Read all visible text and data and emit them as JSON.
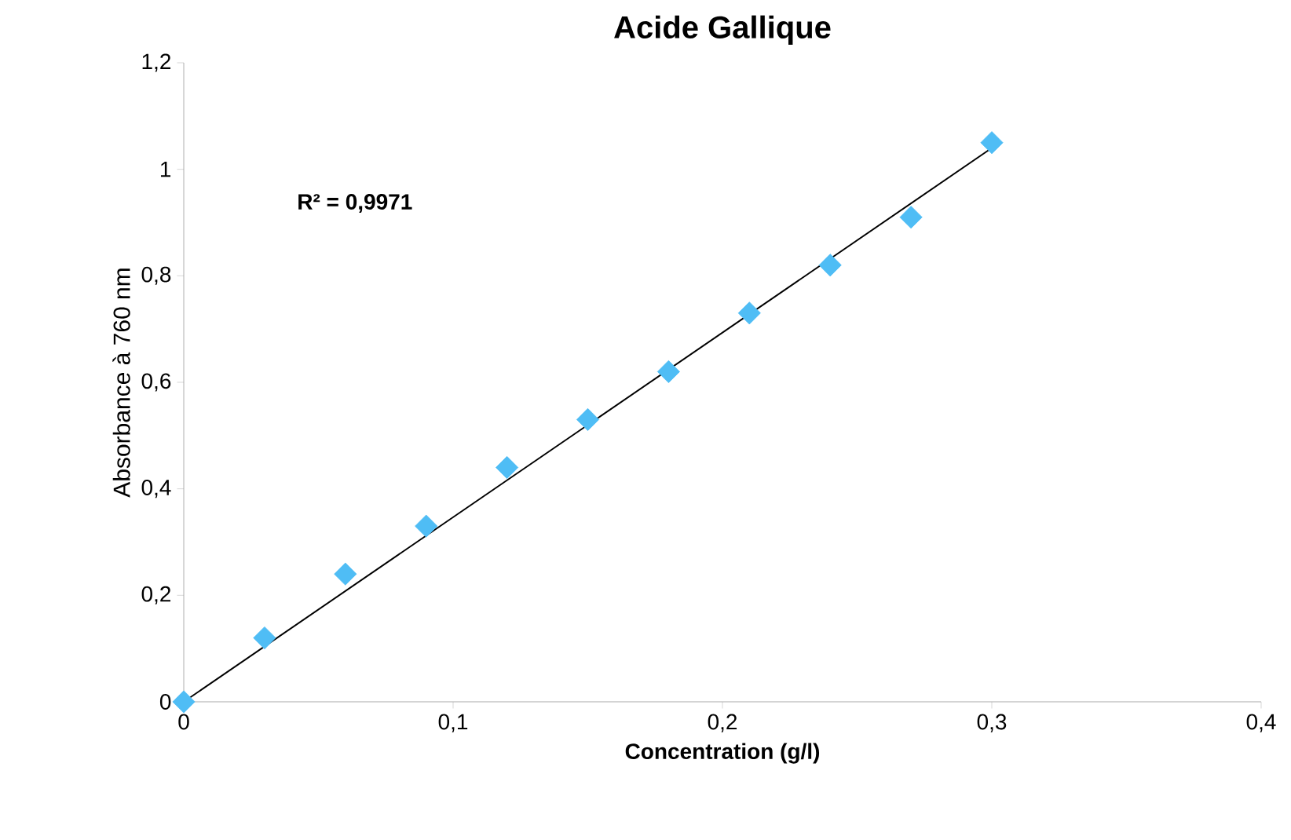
{
  "chart_data": {
    "type": "scatter",
    "title": "Acide Gallique",
    "xlabel": "Concentration (g/l)",
    "ylabel": "Absorbance à 760 nm",
    "annotations": [
      "R² = 0,9971"
    ],
    "series": [
      {
        "color": "#4fbdf5",
        "marker": "diamond",
        "x": [
          0,
          0.03,
          0.06,
          0.09,
          0.12,
          0.15,
          0.18,
          0.21,
          0.24,
          0.27,
          0.3
        ],
        "values": [
          0,
          0.12,
          0.24,
          0.33,
          0.44,
          0.53,
          0.62,
          0.73,
          0.82,
          0.91,
          1.05
        ]
      },
      {
        "type": "line",
        "color": "#000000",
        "x": [
          0,
          0.3
        ],
        "values": [
          0,
          1.04
        ]
      }
    ],
    "xlim": [
      0,
      0.4
    ],
    "ylim": [
      0,
      1.2
    ],
    "xticks": [
      0,
      {
        "value": 0.1,
        "label": "0,1"
      },
      {
        "value": 0.2,
        "label": "0,2"
      },
      {
        "value": 0.3,
        "label": "0,3"
      },
      {
        "value": 0.4,
        "label": "0,4"
      }
    ],
    "yticks": [
      0,
      {
        "value": 0.2,
        "label": "0,2"
      },
      {
        "value": 0.4,
        "label": "0,4"
      },
      {
        "value": 0.6,
        "label": "0,6"
      },
      {
        "value": 0.8,
        "label": "0,8"
      },
      1,
      {
        "value": 1.2,
        "label": "1,2"
      }
    ],
    "grid": false
  }
}
